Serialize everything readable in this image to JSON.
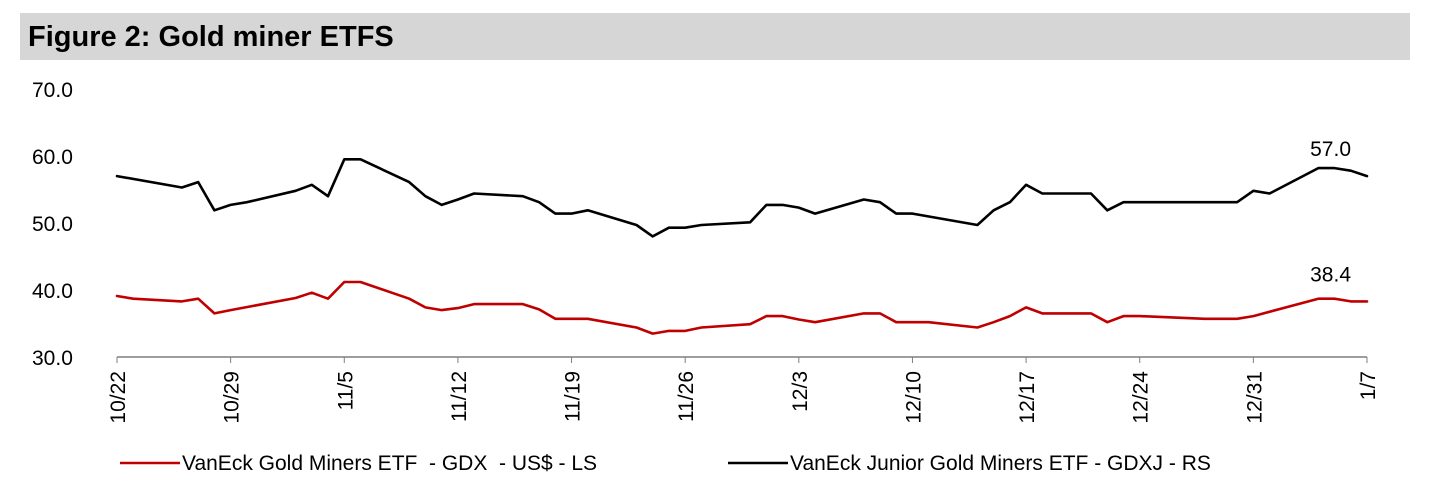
{
  "title": "Figure 2: Gold miner ETFS",
  "chart_data": {
    "type": "line",
    "y_ticks": [
      "70.0",
      "60.0",
      "50.0",
      "40.0",
      "30.0"
    ],
    "ylim": [
      30,
      70
    ],
    "x_ticks": [
      "10/22",
      "10/29",
      "11/5",
      "11/12",
      "11/19",
      "11/26",
      "12/3",
      "12/10",
      "12/17",
      "12/24",
      "12/31",
      "1/7"
    ],
    "x_range_days": [
      0,
      77
    ],
    "series": [
      {
        "name": "VanEck Gold Miners ETF  - GDX  - US$ - LS",
        "color": "#c00000",
        "end_label": "38.4",
        "points": [
          [
            0,
            39.1
          ],
          [
            1,
            38.7
          ],
          [
            4,
            38.3
          ],
          [
            5,
            38.7
          ],
          [
            6,
            36.5
          ],
          [
            7,
            37.0
          ],
          [
            11,
            38.8
          ],
          [
            12,
            39.6
          ],
          [
            13,
            38.7
          ],
          [
            14,
            41.2
          ],
          [
            15,
            41.2
          ],
          [
            18,
            38.7
          ],
          [
            19,
            37.4
          ],
          [
            20,
            37.0
          ],
          [
            21,
            37.3
          ],
          [
            22,
            37.9
          ],
          [
            25,
            37.9
          ],
          [
            26,
            37.1
          ],
          [
            27,
            35.7
          ],
          [
            29,
            35.7
          ],
          [
            32,
            34.4
          ],
          [
            33,
            33.5
          ],
          [
            34,
            33.9
          ],
          [
            35,
            33.9
          ],
          [
            36,
            34.4
          ],
          [
            39,
            34.9
          ],
          [
            40,
            36.1
          ],
          [
            41,
            36.1
          ],
          [
            42,
            35.6
          ],
          [
            43,
            35.2
          ],
          [
            46,
            36.5
          ],
          [
            47,
            36.5
          ],
          [
            48,
            35.2
          ],
          [
            50,
            35.2
          ],
          [
            53,
            34.4
          ],
          [
            54,
            35.2
          ],
          [
            55,
            36.1
          ],
          [
            56,
            37.4
          ],
          [
            57,
            36.5
          ],
          [
            60,
            36.5
          ],
          [
            61,
            35.2
          ],
          [
            62,
            36.1
          ],
          [
            63,
            36.1
          ],
          [
            67,
            35.7
          ],
          [
            69,
            35.7
          ],
          [
            70,
            36.1
          ],
          [
            74,
            38.7
          ],
          [
            75,
            38.7
          ],
          [
            76,
            38.3
          ],
          [
            77,
            38.3
          ]
        ]
      },
      {
        "name": "VanEck Junior Gold Miners ETF - GDXJ - RS",
        "color": "#000000",
        "end_label": "57.0",
        "points": [
          [
            0,
            57.0
          ],
          [
            4,
            55.3
          ],
          [
            5,
            56.1
          ],
          [
            6,
            51.9
          ],
          [
            7,
            52.7
          ],
          [
            8,
            53.1
          ],
          [
            11,
            54.8
          ],
          [
            12,
            55.7
          ],
          [
            13,
            54.0
          ],
          [
            14,
            59.5
          ],
          [
            15,
            59.5
          ],
          [
            18,
            56.1
          ],
          [
            19,
            54.0
          ],
          [
            20,
            52.7
          ],
          [
            21,
            53.5
          ],
          [
            22,
            54.4
          ],
          [
            25,
            54.0
          ],
          [
            26,
            53.1
          ],
          [
            27,
            51.4
          ],
          [
            28,
            51.4
          ],
          [
            29,
            51.9
          ],
          [
            32,
            49.7
          ],
          [
            33,
            48.0
          ],
          [
            34,
            49.3
          ],
          [
            35,
            49.3
          ],
          [
            36,
            49.7
          ],
          [
            39,
            50.1
          ],
          [
            40,
            52.7
          ],
          [
            41,
            52.7
          ],
          [
            42,
            52.3
          ],
          [
            43,
            51.4
          ],
          [
            46,
            53.5
          ],
          [
            47,
            53.1
          ],
          [
            48,
            51.4
          ],
          [
            49,
            51.4
          ],
          [
            53,
            49.7
          ],
          [
            54,
            51.9
          ],
          [
            55,
            53.1
          ],
          [
            56,
            55.7
          ],
          [
            57,
            54.4
          ],
          [
            60,
            54.4
          ],
          [
            61,
            51.9
          ],
          [
            62,
            53.1
          ],
          [
            67,
            53.1
          ],
          [
            69,
            53.1
          ],
          [
            70,
            54.8
          ],
          [
            71,
            54.4
          ],
          [
            74,
            58.2
          ],
          [
            75,
            58.2
          ],
          [
            76,
            57.8
          ],
          [
            77,
            57.0
          ]
        ]
      }
    ]
  }
}
